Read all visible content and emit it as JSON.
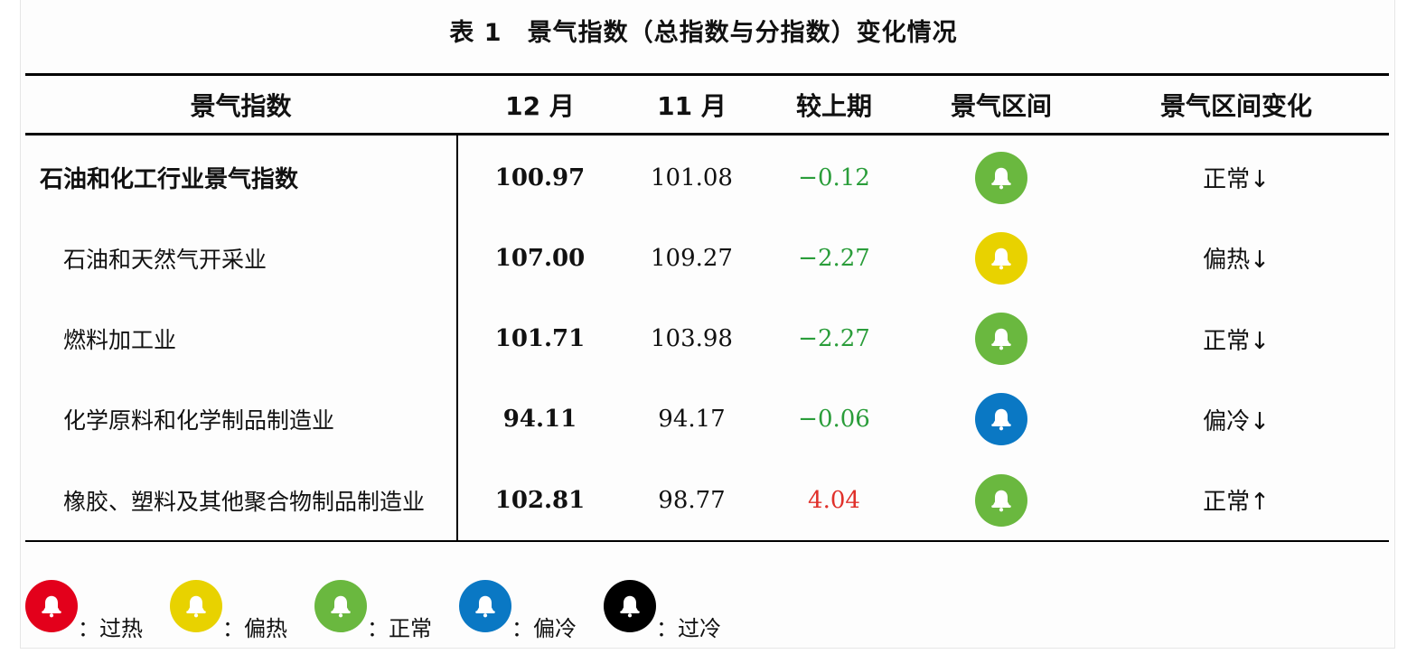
{
  "caption": {
    "number": "表 1",
    "title": "景气指数（总指数与分指数）变化情况"
  },
  "colors": {
    "overheat": "#e3001b",
    "warm": "#e8d200",
    "normal": "#6ab83f",
    "cool": "#0a78c4",
    "overcool": "#000000",
    "negative": "#2a9d3a",
    "positive": "#e0302a"
  },
  "headers": {
    "index": "景气指数",
    "dec": "12 月",
    "nov": "11 月",
    "change": "较上期",
    "range": "景气区间",
    "range_change": "景气区间变化"
  },
  "rows": [
    {
      "name": "石油和化工行业景气指数",
      "dec": "100.97",
      "nov": "101.08",
      "change": "−0.12",
      "status": "normal",
      "range_change": "正常↓"
    },
    {
      "name": "石油和天然气开采业",
      "dec": "107.00",
      "nov": "109.27",
      "change": "−2.27",
      "status": "warm",
      "range_change": "偏热↓"
    },
    {
      "name": "燃料加工业",
      "dec": "101.71",
      "nov": "103.98",
      "change": "−2.27",
      "status": "normal",
      "range_change": "正常↓"
    },
    {
      "name": "化学原料和化学制品制造业",
      "dec": "94.11",
      "nov": "94.17",
      "change": "−0.06",
      "status": "cool",
      "range_change": "偏冷↓"
    },
    {
      "name": "橡胶、塑料及其他聚合物制品制造业",
      "dec": "102.81",
      "nov": "98.77",
      "change": "4.04",
      "status": "normal",
      "range_change": "正常↑"
    }
  ],
  "legend": [
    {
      "status": "overheat",
      "label": "：过热"
    },
    {
      "status": "warm",
      "label": "：偏热"
    },
    {
      "status": "normal",
      "label": "：正常"
    },
    {
      "status": "cool",
      "label": "：偏冷"
    },
    {
      "status": "overcool",
      "label": "：过冷"
    }
  ],
  "icons": {
    "bell": "bell-icon"
  }
}
